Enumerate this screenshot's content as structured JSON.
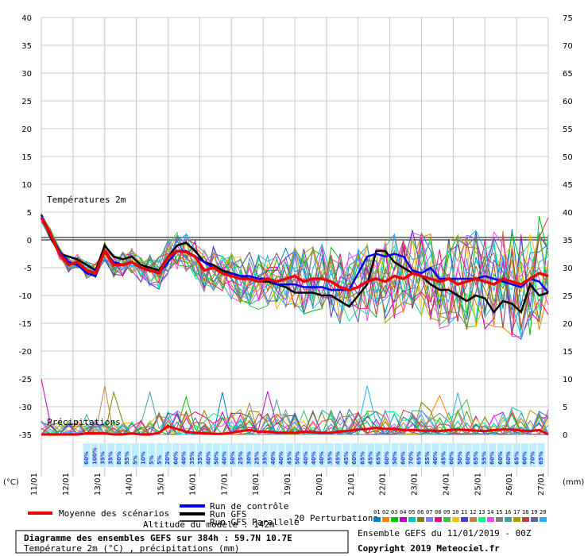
{
  "chart_data": {
    "type": "line",
    "title": "Diagramme des ensembles GEFS sur 384h : 59.7N 10.7E",
    "subtitle": "Température 2m (°C) , précipitations (mm)",
    "left_axis_unit": "(°C)",
    "right_axis_unit": "(mm)",
    "temp_ylim": [
      -35,
      40
    ],
    "temp_ticks": [
      40,
      35,
      30,
      25,
      20,
      15,
      10,
      5,
      0,
      -5,
      -10,
      -15,
      -20,
      -25,
      -30,
      -35
    ],
    "precip_ylim": [
      0,
      75
    ],
    "precip_ticks": [
      75,
      70,
      65,
      60,
      55,
      50,
      45,
      40,
      35,
      30,
      25,
      20,
      15,
      10,
      5,
      0
    ],
    "date_labels": [
      "11/01",
      "12/01",
      "13/01",
      "14/01",
      "15/01",
      "16/01",
      "17/01",
      "18/01",
      "19/01",
      "20/01",
      "21/01",
      "22/01",
      "23/01",
      "24/01",
      "25/01",
      "26/01",
      "27/01"
    ],
    "grid": true,
    "label_temp": "Températures 2m",
    "label_precip": "Précipitations",
    "altitude_text": "Altitude du modèle : 142m",
    "reference_temp": 0,
    "mean_temp": [
      4,
      1,
      -2.5,
      -4.5,
      -4,
      -5.5,
      -6,
      -2,
      -4.5,
      -4.5,
      -4,
      -5,
      -5.5,
      -6,
      -3,
      -2,
      -2.2,
      -3,
      -5.5,
      -5,
      -6,
      -6.5,
      -7,
      -7,
      -7.5,
      -7,
      -7.5,
      -7,
      -6.5,
      -7.5,
      -7,
      -7,
      -7.5,
      -8.5,
      -9,
      -8.5,
      -7.5,
      -7,
      -7.5,
      -6.5,
      -7,
      -6,
      -6.5,
      -7,
      -7.5,
      -7,
      -8,
      -7.5,
      -7,
      -7.5,
      -8,
      -7,
      -7.5,
      -8,
      -7,
      -6,
      -6.5
    ],
    "control_temp": [
      4.5,
      1,
      -2,
      -4,
      -4.5,
      -6,
      -6.5,
      -2,
      -4,
      -4.5,
      -4,
      -5,
      -5.5,
      -6,
      -4,
      -2,
      -2,
      -3,
      -4,
      -5,
      -6,
      -6,
      -6.5,
      -6.5,
      -7,
      -7,
      -8,
      -8,
      -8,
      -8.5,
      -8.5,
      -8.5,
      -9,
      -9,
      -9,
      -6,
      -3,
      -2.5,
      -3,
      -2.5,
      -3,
      -5.5,
      -6,
      -5,
      -7,
      -7,
      -7,
      -7,
      -7,
      -6.5,
      -7,
      -7.5,
      -8,
      -8.5,
      -7,
      -7.5,
      -9.5
    ],
    "gfs_temp": [
      4.5,
      0.5,
      -2.5,
      -3,
      -3.5,
      -4.5,
      -5.5,
      -1,
      -3,
      -3.5,
      -3,
      -4.5,
      -5,
      -5.5,
      -3,
      -1,
      -0.5,
      -2,
      -4,
      -4.5,
      -5.5,
      -6,
      -6.5,
      -7,
      -7.5,
      -7.5,
      -8,
      -8.5,
      -9.5,
      -9.5,
      -9.5,
      -10,
      -10,
      -11,
      -12,
      -10,
      -8,
      -2,
      -2,
      -4,
      -5,
      -6,
      -6.5,
      -8,
      -9,
      -9,
      -10,
      -11,
      -10,
      -10.5,
      -13,
      -11,
      -11.5,
      -13,
      -8,
      -10,
      -9.5
    ],
    "mean_precip": [
      0,
      0,
      0,
      0,
      0,
      0.2,
      0.2,
      0.2,
      0,
      0,
      0.2,
      0,
      0,
      0.3,
      1.5,
      1,
      0.5,
      0.3,
      0.2,
      0.1,
      0.1,
      0.3,
      0.6,
      0.8,
      0.5,
      0.5,
      0.3,
      0.3,
      0.3,
      0.5,
      0.4,
      0.3,
      0.3,
      0.5,
      0.7,
      0.9,
      1,
      1.2,
      1,
      1,
      0.8,
      0.8,
      0.7,
      0.7,
      0.6,
      0.8,
      0.9,
      0.8,
      0.7,
      0.6,
      0.8,
      0.9,
      0.9,
      0.7,
      0.6,
      0.8,
      0
    ],
    "probabilities": [
      "60%",
      "100%",
      "35%",
      "35%",
      "80%",
      "55%",
      "5%",
      "10%",
      "5%",
      "5%",
      "20%",
      "60%",
      "40%",
      "35%",
      "35%",
      "40%",
      "50%",
      "40%",
      "50%",
      "25%",
      "30%",
      "25%",
      "35%",
      "40%",
      "40%",
      "45%",
      "50%",
      "40%",
      "40%",
      "40%",
      "35%",
      "45%",
      "45%",
      "60%",
      "65%",
      "45%",
      "65%",
      "60%",
      "50%",
      "60%",
      "70%",
      "65%",
      "55%",
      "40%",
      "45%",
      "60%",
      "50%",
      "60%",
      "65%",
      "55%",
      "60%",
      "60%",
      "60%",
      "65%",
      "60%",
      "70%",
      "65%"
    ],
    "series_legend": {
      "mean": "Moyenne des scénarios",
      "control": "Run de contrôle",
      "gfs": "Run GFS",
      "gfs_parallel": "Run GFS Parallele",
      "perturbations": "20 Perturbations"
    },
    "perturbation_ids": [
      "01",
      "02",
      "03",
      "04",
      "05",
      "06",
      "07",
      "08",
      "09",
      "10",
      "11",
      "12",
      "13",
      "14",
      "15",
      "16",
      "17",
      "18",
      "19",
      "20"
    ],
    "perturbation_colors": [
      "#0080c0",
      "#ff8000",
      "#00c000",
      "#c000c0",
      "#00c0c0",
      "#808000",
      "#8080ff",
      "#ff0080",
      "#40c040",
      "#ffc000",
      "#4040c0",
      "#c08040",
      "#00ff80",
      "#ff40ff",
      "#808080",
      "#40a0a0",
      "#a0a000",
      "#c04040",
      "#6060a0",
      "#20b0ff"
    ],
    "colors": {
      "mean": "#ee0000",
      "control": "#0000ee",
      "gfs": "#000000"
    }
  },
  "footer": {
    "ensemble_text": "Ensemble GEFS du 11/01/2019 - 00Z",
    "copyright": "Copyright 2019 Meteociel.fr"
  }
}
